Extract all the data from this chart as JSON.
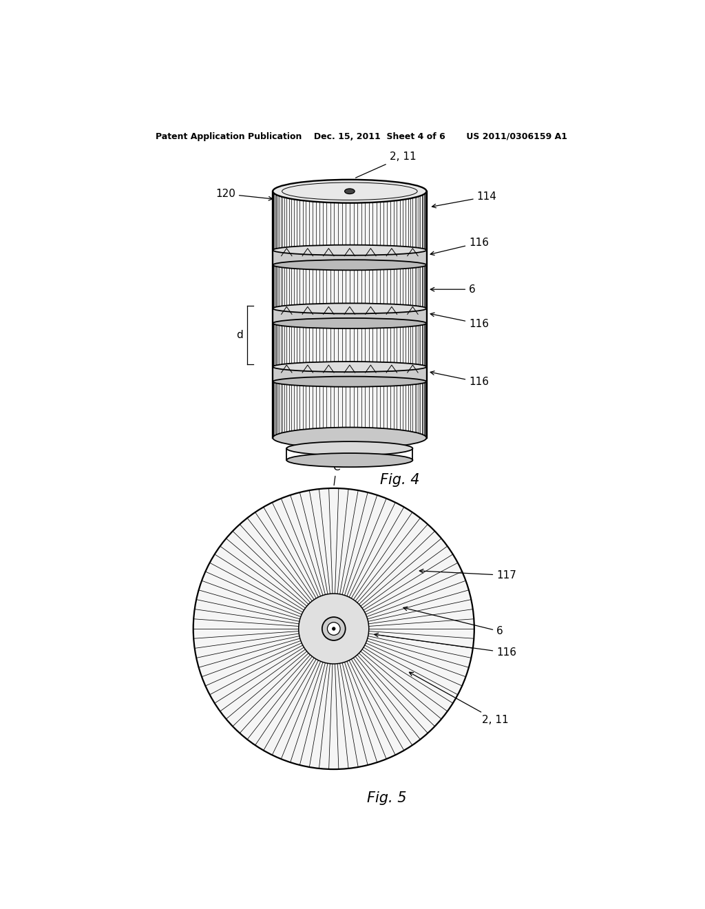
{
  "bg_color": "#ffffff",
  "line_color": "#000000",
  "header_text": "Patent Application Publication    Dec. 15, 2011  Sheet 4 of 6       US 2011/0306159 A1",
  "fig4_label": "Fig. 4",
  "fig5_label": "Fig. 5"
}
